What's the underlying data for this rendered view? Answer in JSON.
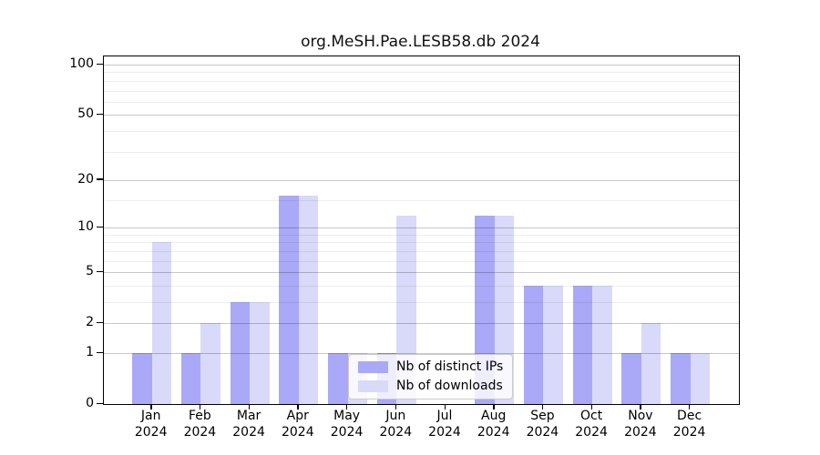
{
  "chart_data": {
    "type": "bar",
    "title": "org.MeSH.Pae.LESB58.db 2024",
    "categories": [
      "Jan 2024",
      "Feb 2024",
      "Mar 2024",
      "Apr 2024",
      "May 2024",
      "Jun 2024",
      "Jul 2024",
      "Aug 2024",
      "Sep 2024",
      "Oct 2024",
      "Nov 2024",
      "Dec 2024"
    ],
    "series": [
      {
        "name": "Nb of distinct IPs",
        "color": "#a9a9f7",
        "values": [
          1,
          1,
          3,
          16,
          1,
          1,
          0,
          12,
          4,
          4,
          1,
          1
        ]
      },
      {
        "name": "Nb of downloads",
        "color": "#d9d9f9",
        "values": [
          8,
          2,
          3,
          16,
          1,
          12,
          0,
          12,
          4,
          4,
          2,
          1
        ]
      }
    ],
    "xlabel": "",
    "ylabel": "",
    "yscale": "log1p",
    "ylim": [
      0,
      100
    ],
    "yticks": [
      0,
      1,
      2,
      5,
      10,
      20,
      50,
      100
    ],
    "minor_gridlines": [
      3,
      4,
      6,
      7,
      8,
      9,
      15,
      30,
      40,
      60,
      70,
      80,
      90
    ],
    "grid": true,
    "legend_position": "lower center"
  },
  "colors": {
    "axis": "#000000",
    "grid_major": "#c9c9c9",
    "grid_minor": "#ededed",
    "legend_border": "#cbcbcb",
    "background": "#ffffff"
  }
}
